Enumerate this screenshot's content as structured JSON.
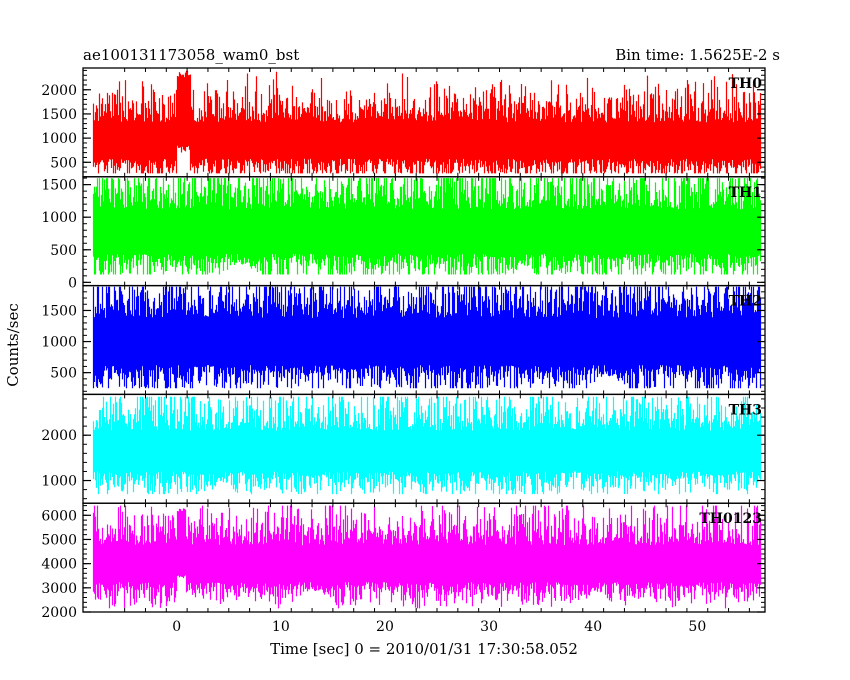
{
  "header": {
    "title": "ae100131173058_wam0_bst",
    "bin_time": "Bin time: 1.5625E-2 s"
  },
  "chart_data": {
    "type": "line",
    "title": "ae100131173058_wam0_bst",
    "ylabel": "Counts/sec",
    "xlabel": "Time [sec] 0 = 2010/01/31 17:30:58.052",
    "xlim": [
      -9,
      56.5
    ],
    "x_ticks": [
      0,
      10,
      20,
      30,
      40,
      50
    ],
    "data_x_range": [
      -8,
      56
    ],
    "grid": false,
    "panels": [
      {
        "name": "TH0",
        "color": "#ff0000",
        "ylim": [
          200,
          2450
        ],
        "y_ticks": [
          500,
          1000,
          1500,
          2000
        ],
        "baseline": 950,
        "spread": 420,
        "min": 270,
        "max": 2400,
        "burst": {
          "t_start": 0,
          "t_end": 1.2,
          "peak": 2400,
          "floor": 700
        }
      },
      {
        "name": "TH1",
        "color": "#00ff00",
        "ylim": [
          -50,
          1620
        ],
        "y_ticks": [
          0,
          500,
          1000,
          1500
        ],
        "baseline": 780,
        "spread": 380,
        "min": 120,
        "max": 1600
      },
      {
        "name": "TH2",
        "color": "#0000ff",
        "ylim": [
          150,
          1900
        ],
        "y_ticks": [
          500,
          1000,
          1500
        ],
        "baseline": 1000,
        "spread": 420,
        "min": 250,
        "max": 1880
      },
      {
        "name": "TH3",
        "color": "#00ffff",
        "ylim": [
          500,
          2900
        ],
        "y_ticks": [
          1000,
          2000
        ],
        "baseline": 1650,
        "spread": 500,
        "min": 700,
        "max": 2850
      },
      {
        "name": "TH0123",
        "color": "#ff00ff",
        "ylim": [
          2000,
          6500
        ],
        "y_ticks": [
          2000,
          3000,
          4000,
          5000,
          6000
        ],
        "baseline": 4000,
        "spread": 850,
        "min": 2150,
        "max": 6400,
        "burst": {
          "t_start": 0,
          "t_end": 0.8,
          "peak": 6300,
          "floor": 3400
        }
      }
    ]
  }
}
